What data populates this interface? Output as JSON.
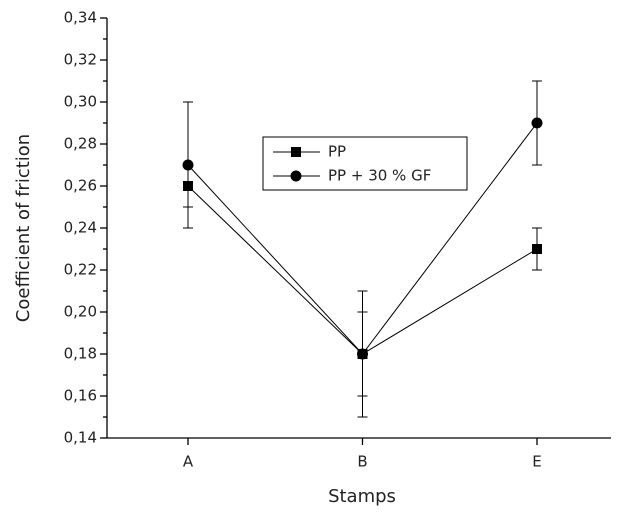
{
  "chart_data": {
    "type": "line",
    "x_label": "Stamps",
    "y_label": "Coefficient of friction",
    "categories": [
      "A",
      "B",
      "E"
    ],
    "series": [
      {
        "name": "PP",
        "color": "#000000",
        "marker": "square",
        "values": [
          0.26,
          0.18,
          0.23
        ],
        "errors": [
          0.01,
          0.02,
          0.01
        ]
      },
      {
        "name": "PP + 30 % GF",
        "color": "#000000",
        "marker": "circle",
        "values": [
          0.27,
          0.18,
          0.29
        ],
        "errors": [
          0.03,
          0.03,
          0.02
        ]
      }
    ],
    "ylim": [
      0.14,
      0.34
    ],
    "yticks": [
      {
        "value": 0.14,
        "label": "0,14"
      },
      {
        "value": 0.16,
        "label": "0,16"
      },
      {
        "value": 0.18,
        "label": "0,18"
      },
      {
        "value": 0.2,
        "label": "0,20"
      },
      {
        "value": 0.22,
        "label": "0,22"
      },
      {
        "value": 0.24,
        "label": "0,24"
      },
      {
        "value": 0.26,
        "label": "0,26"
      },
      {
        "value": 0.28,
        "label": "0,28"
      },
      {
        "value": 0.3,
        "label": "0,30"
      },
      {
        "value": 0.32,
        "label": "0,32"
      },
      {
        "value": 0.34,
        "label": "0,34"
      }
    ]
  }
}
